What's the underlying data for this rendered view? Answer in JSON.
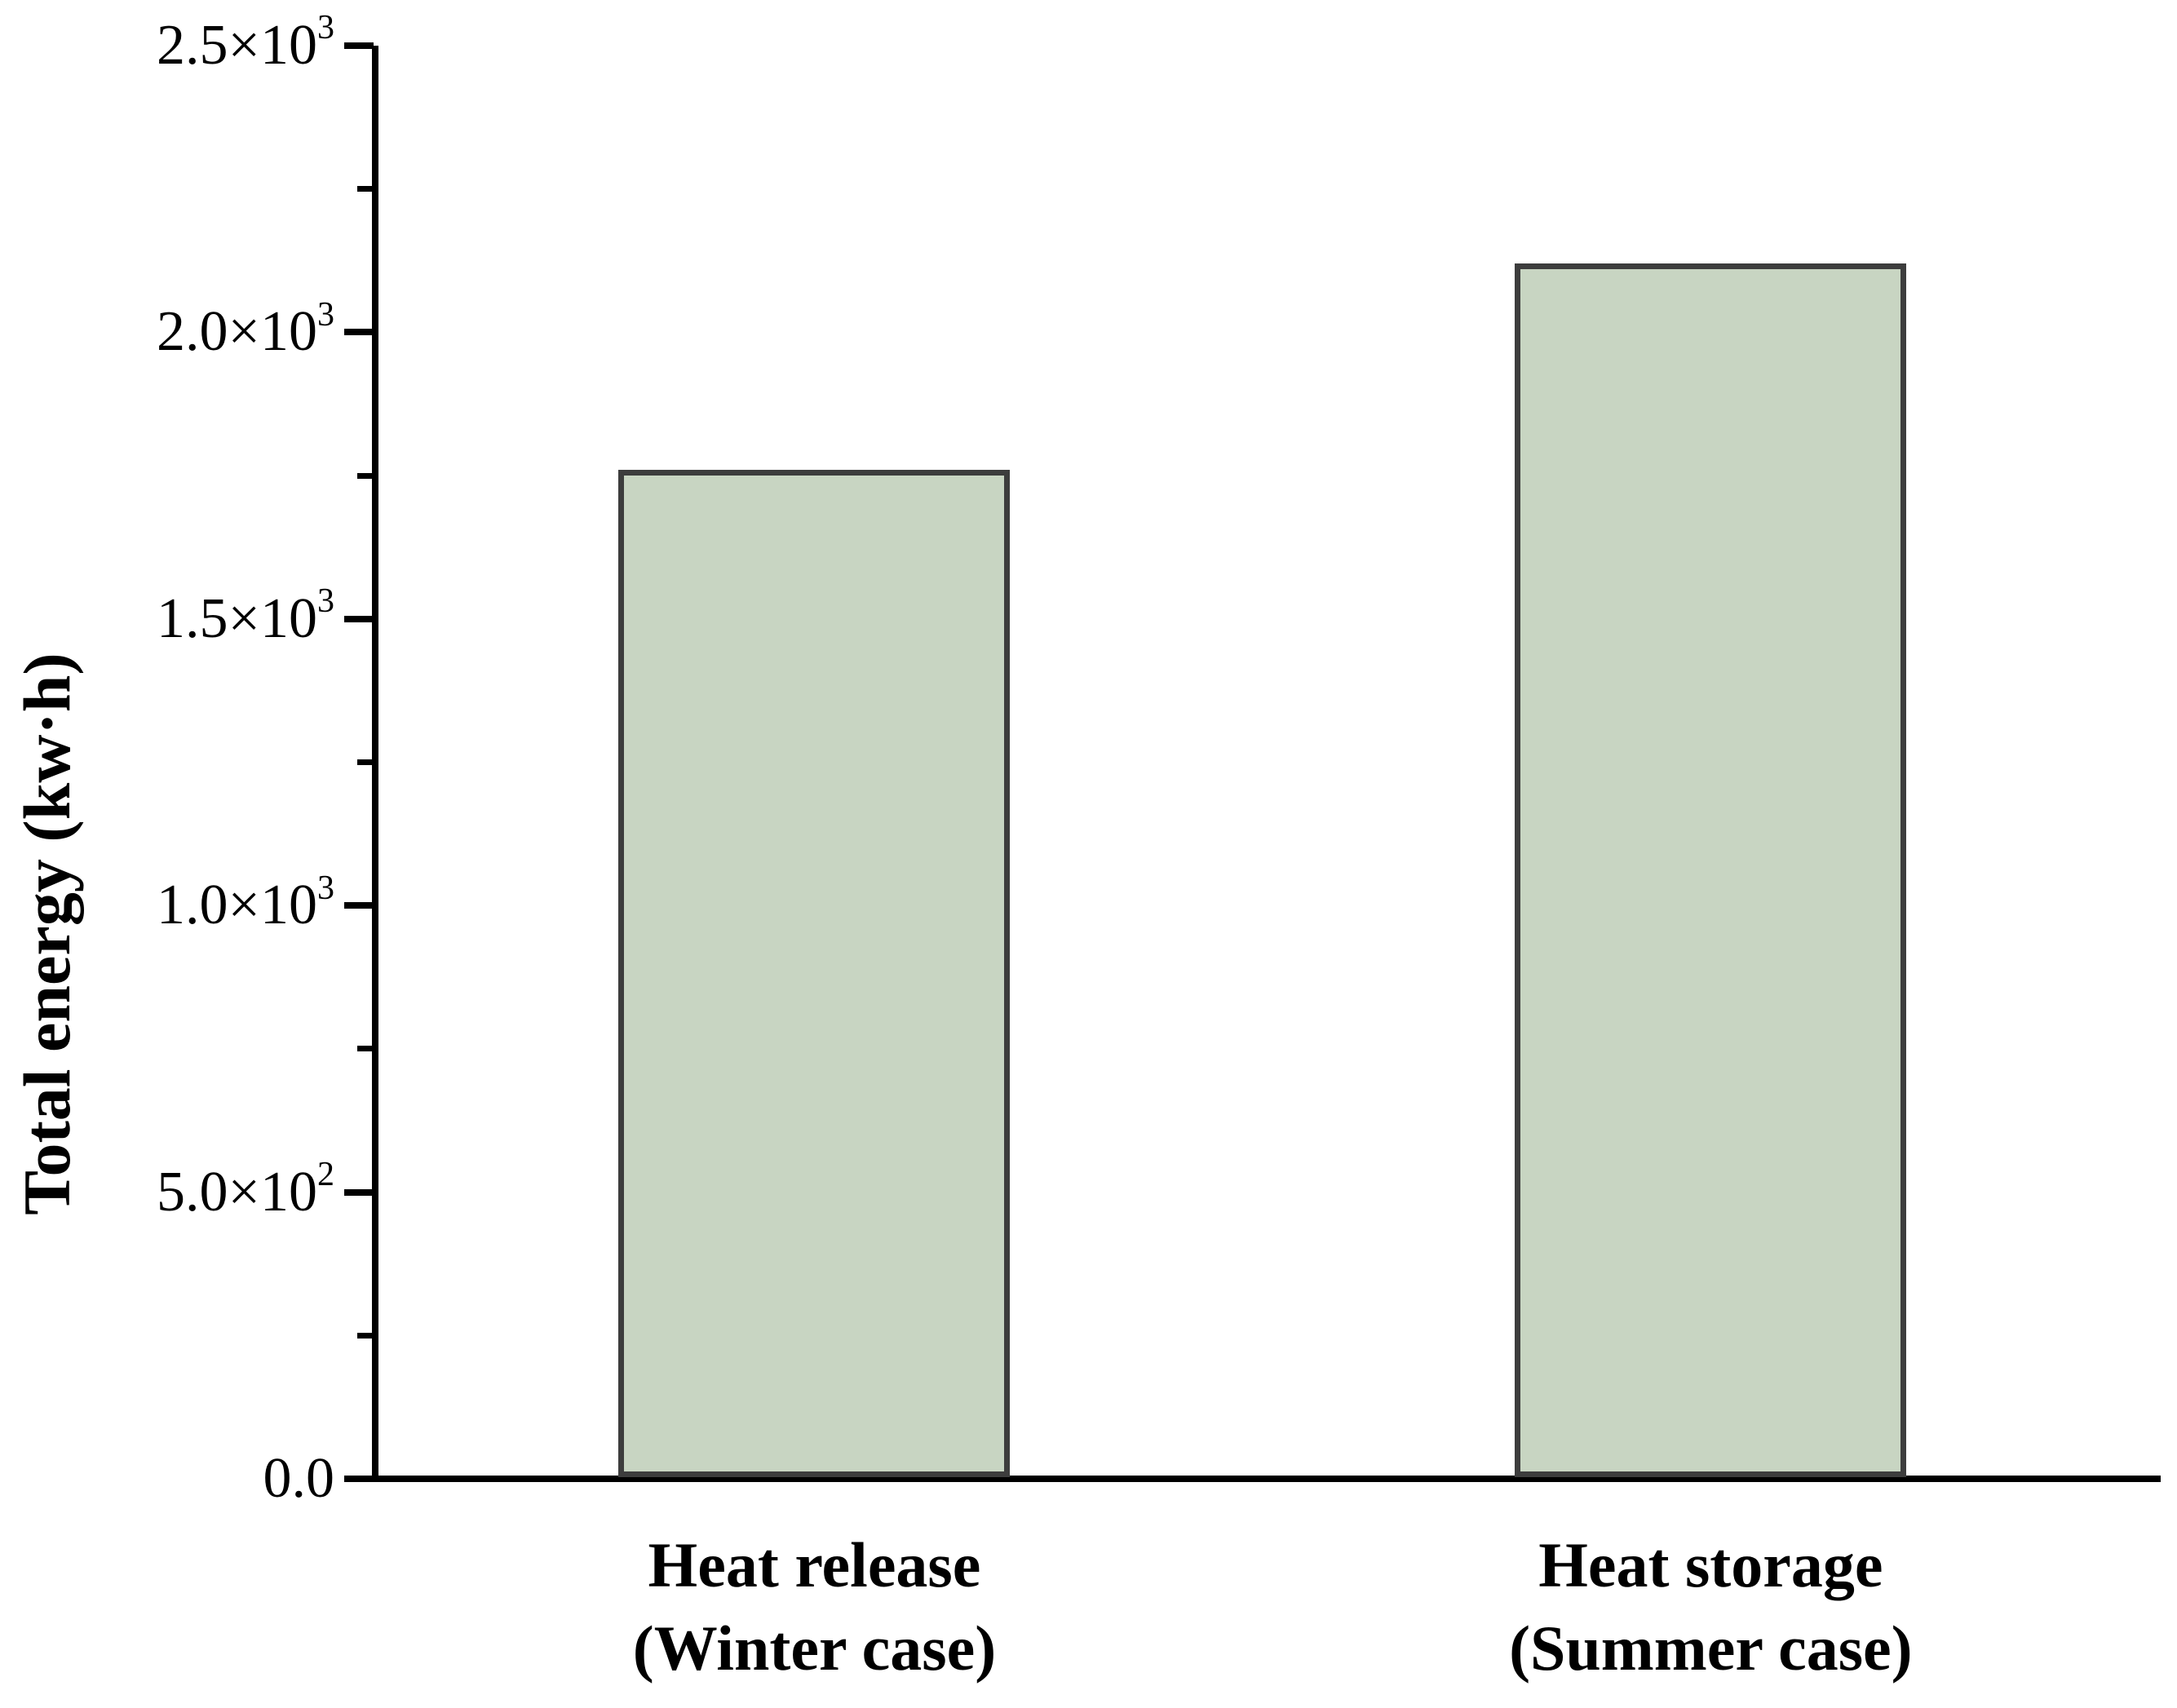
{
  "chart_data": {
    "type": "bar",
    "title": "",
    "xlabel": "",
    "ylabel": "Total energy (kw·h)",
    "ylim": [
      0,
      2500
    ],
    "grid": false,
    "legend": null,
    "bar_color": "#c8d5c2",
    "bar_border_color": "#3d3d3d",
    "axis_color": "#000000",
    "categories": [
      "Heat release (Winter case)",
      "Heat storage (Summer case)"
    ],
    "category_lines": [
      [
        "Heat release",
        "(Winter case)"
      ],
      [
        "Heat storage",
        "(Summer case)"
      ]
    ],
    "values": [
      1760,
      2120
    ],
    "y_major_ticks": [
      {
        "value": 0,
        "base": "0.0",
        "exp": ""
      },
      {
        "value": 500,
        "base": "5.0×10",
        "exp": "2"
      },
      {
        "value": 1000,
        "base": "1.0×10",
        "exp": "3"
      },
      {
        "value": 1500,
        "base": "1.5×10",
        "exp": "3"
      },
      {
        "value": 2000,
        "base": "2.0×10",
        "exp": "3"
      },
      {
        "value": 2500,
        "base": "2.5×10",
        "exp": "3"
      }
    ],
    "y_minor_ticks": [
      250,
      750,
      1250,
      1750,
      2250
    ]
  }
}
